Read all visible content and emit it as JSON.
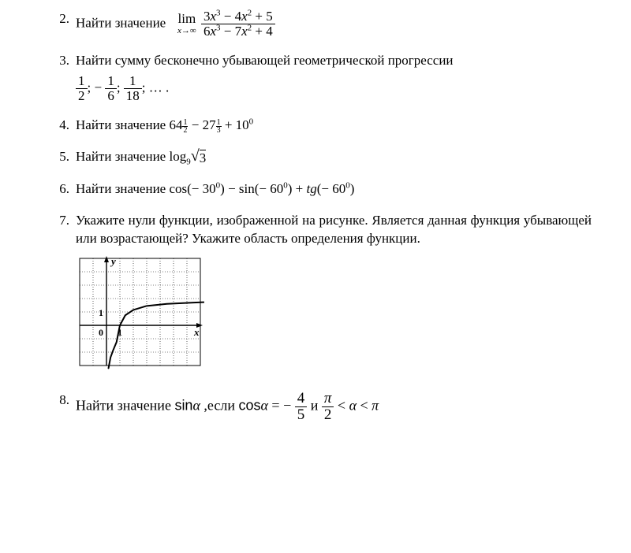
{
  "problems": {
    "p2": {
      "num": "2.",
      "label": "Найти значение",
      "lim_top": "lim",
      "lim_sub_a": "x",
      "lim_sub_b": "→∞",
      "numerator_a": "3",
      "numerator_b": "x",
      "numerator_c": "3",
      "numerator_d": " − 4",
      "numerator_e": "x",
      "numerator_f": "2",
      "numerator_g": " + 5",
      "denominator_a": "6",
      "denominator_b": "x",
      "denominator_c": "3",
      "denominator_d": " − 7",
      "denominator_e": "x",
      "denominator_f": "2",
      "denominator_g": " + 4"
    },
    "p3": {
      "num": "3.",
      "label": "Найти сумму бесконечно убывающей геометрической прогрессии",
      "f1n": "1",
      "f1d": "2",
      "sep1": "; − ",
      "f2n": "1",
      "f2d": "6",
      "sep2": "; ",
      "f3n": "1",
      "f3d": "18",
      "tail": "; … ."
    },
    "p4": {
      "num": "4.",
      "label": "Найти значение ",
      "a": "64",
      "a_en": "1",
      "a_ed": "2",
      "minus": " − ",
      "b": "27",
      "b_en": "1",
      "b_ed": "3",
      "plus": " + ",
      "c": "10",
      "c_e": "0"
    },
    "p5": {
      "num": "5.",
      "label": "Найти значение ",
      "log": "log",
      "base": "9",
      "rad": "3"
    },
    "p6": {
      "num": "6.",
      "label": "Найти значение ",
      "cos": "cos",
      "arg1a": "(− 30",
      "deg": "0",
      "arg1b": ")",
      "minus": " − ",
      "sin": "sin",
      "arg2a": "(− 60",
      "arg2b": ")",
      "plus": " + ",
      "tg": "tg",
      "arg3a": "(− 60",
      "arg3b": ")"
    },
    "p7": {
      "num": "7.",
      "text": "Укажите нули функции, изображенной на рисунке. Является данная функция убывающей или возрастающей? Укажите область определения функции."
    },
    "p8": {
      "num": "8.",
      "t1": " Найти ",
      "t2": "значение ",
      "sin": "sin",
      "alpha1": "α",
      "t3": " ,если ",
      "cos": "cos",
      "alpha2": "α",
      "eq": " = − ",
      "fn": "4",
      "fd": "5",
      "and": " и ",
      "pi": "π",
      "two": "2",
      "lt1": " < ",
      "alpha3": "α",
      "lt2": " < ",
      "pi2": "π"
    }
  },
  "graph": {
    "width": 175,
    "height": 150,
    "cell": 17,
    "cols": 9,
    "rows": 8,
    "origin_col": 2,
    "origin_row": 5,
    "y_label": "y",
    "x_label": "x",
    "tick_label": "1",
    "zero_label": "0",
    "grid_color": "#000000",
    "grid_dash": "1 2",
    "axis_color": "#000000",
    "curve_color": "#000000",
    "curve_points": [
      [
        0.15,
        8.2
      ],
      [
        0.3,
        7.4
      ],
      [
        0.5,
        6.85
      ],
      [
        0.75,
        6.25
      ],
      [
        1.0,
        5.0
      ],
      [
        1.4,
        4.25
      ],
      [
        2.0,
        3.85
      ],
      [
        3.0,
        3.55
      ],
      [
        4.5,
        3.4
      ],
      [
        6.5,
        3.3
      ],
      [
        7.25,
        3.27
      ]
    ]
  }
}
